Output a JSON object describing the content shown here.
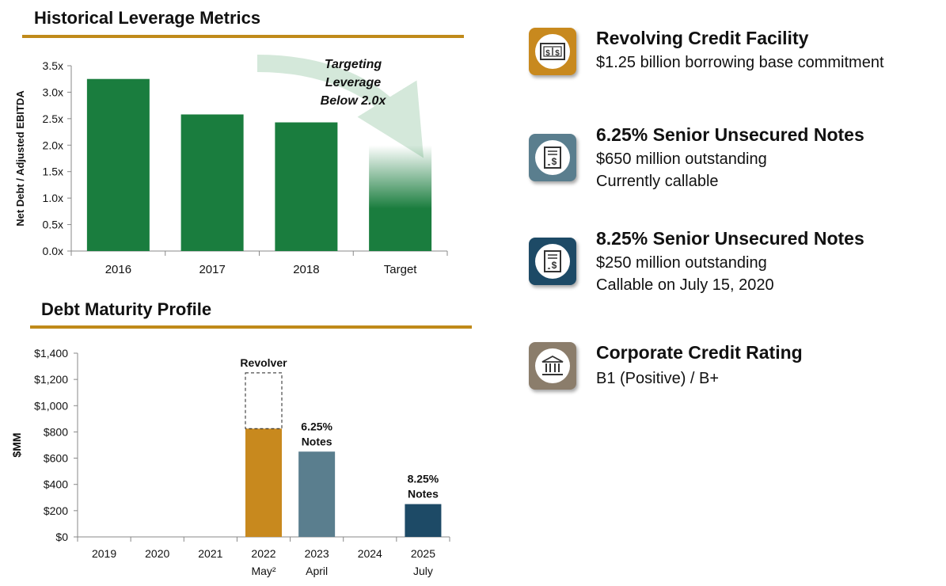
{
  "leverage": {
    "title": "Historical Leverage Metrics",
    "annotation": [
      "Targeting",
      "Leverage",
      "Below 2.0x"
    ]
  },
  "maturity": {
    "title": "Debt Maturity Profile"
  },
  "chart_data": [
    {
      "type": "bar",
      "title": "Historical Leverage Metrics",
      "ylabel": "Net Debt / Adjusted EBITDA",
      "categories": [
        "2016",
        "2017",
        "2018",
        "Target"
      ],
      "values": [
        3.25,
        2.58,
        2.43,
        2.0
      ],
      "ylim": [
        0,
        3.5
      ],
      "yticks": [
        "0.0x",
        "0.5x",
        "1.0x",
        "1.5x",
        "2.0x",
        "2.5x",
        "3.0x",
        "3.5x"
      ],
      "annotation": "Targeting Leverage Below 2.0x",
      "colors": {
        "bar": "#1a7d3e",
        "target_fade": "#1a7d3e"
      }
    },
    {
      "type": "bar",
      "title": "Debt Maturity Profile",
      "ylabel": "$MM",
      "categories": [
        "2019",
        "2020",
        "2021",
        "2022",
        "2023",
        "2024",
        "2025"
      ],
      "sublabels": [
        "",
        "",
        "",
        "May²",
        "April",
        "",
        "July"
      ],
      "ylim": [
        0,
        1400
      ],
      "yticks": [
        "$0",
        "$200",
        "$400",
        "$600",
        "$800",
        "$1,000",
        "$1,200",
        "$1,400"
      ],
      "series": [
        {
          "values": [
            0,
            0,
            0,
            825,
            650,
            0,
            250
          ],
          "colors": [
            "#c8891e",
            "#c8891e",
            "#c8891e",
            "#c8891e",
            "#5a7e8e",
            "#1d4a66",
            "#1d4a66"
          ]
        },
        {
          "values": [
            0,
            0,
            0,
            425,
            0,
            0,
            0
          ],
          "style": "dashed-outline"
        }
      ],
      "bar_labels": [
        {
          "index": 3,
          "lines": [
            "Revolver"
          ]
        },
        {
          "index": 4,
          "lines": [
            "6.25%",
            "Notes"
          ]
        },
        {
          "index": 6,
          "lines": [
            "8.25%",
            "Notes"
          ]
        }
      ]
    }
  ],
  "items": [
    {
      "title": "Revolving Credit Facility",
      "lines": [
        "$1.25 billion borrowing base commitment"
      ],
      "icon": "cash-icon",
      "color": "#c8891e"
    },
    {
      "title": "6.25% Senior Unsecured Notes",
      "lines": [
        "$650 million outstanding",
        "Currently callable"
      ],
      "icon": "document-dollar-icon",
      "color": "#5a7e8e"
    },
    {
      "title": "8.25% Senior Unsecured Notes",
      "lines": [
        "$250 million outstanding",
        "Callable on July 15, 2020"
      ],
      "icon": "document-dollar-icon",
      "color": "#1d4a66"
    },
    {
      "title": "Corporate Credit Rating",
      "lines": [
        "B1 (Positive) / B+"
      ],
      "icon": "bank-icon",
      "color": "#8b7d6b"
    }
  ]
}
